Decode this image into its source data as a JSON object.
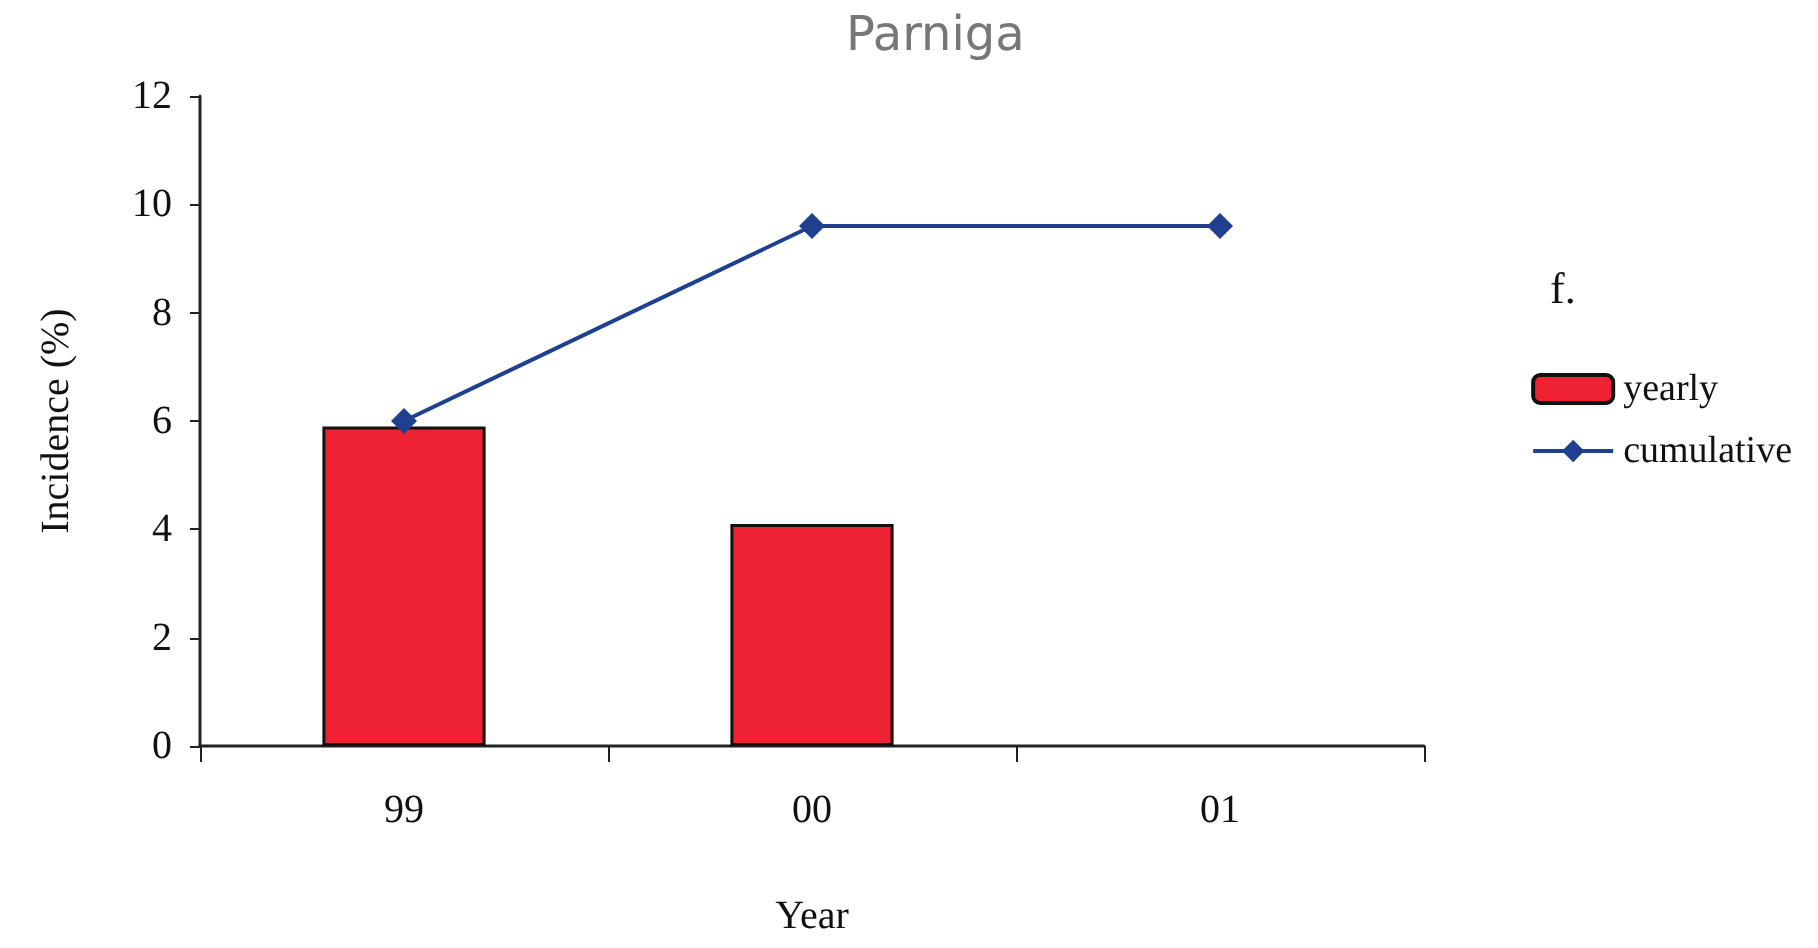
{
  "chart_data": {
    "type": "bar",
    "title": "Parniga",
    "xlabel": "Year",
    "ylabel": "Incidence (%)",
    "categories": [
      "99",
      "00",
      "01"
    ],
    "series": [
      {
        "name": "yearly",
        "color": "#ee2233",
        "values": [
          5.9,
          4.1,
          null
        ]
      },
      {
        "name": "cumulative",
        "type": "line",
        "color": "#1f3f8f",
        "values": [
          6.0,
          9.6,
          9.6
        ],
        "marker": "diamond"
      }
    ],
    "ylim": [
      0,
      12
    ],
    "yticks": [
      0,
      2,
      4,
      6,
      8,
      10,
      12
    ],
    "grid": false,
    "legend": "right",
    "annotations": [
      "f."
    ]
  }
}
